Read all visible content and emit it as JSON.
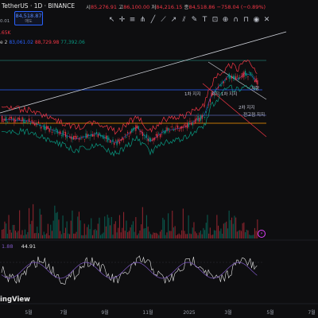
{
  "header": {
    "symbol": "TetherUS · 1D · BINANCE",
    "ohlc": [
      {
        "k": "시",
        "v": "85,276.91"
      },
      {
        "k": "고",
        "v": "86,100.00"
      },
      {
        "k": "저",
        "v": "84,216.15"
      },
      {
        "k": "종",
        "v": "84,518.86"
      },
      {
        "k": "",
        "v": "−758.04 (−0.89%)"
      }
    ],
    "price_box": {
      "price": "84,518.87",
      "sub": "매도"
    },
    "volume_label": ".65K",
    "bb_line": {
      "prefix": "e 2",
      "v1": "83,061.02",
      "v2": "88,729.98",
      "v3": "77,392.06"
    },
    "left_tick": "0.01"
  },
  "annotations": {
    "a1": "저항",
    "a2": "1차 지지",
    "a3": "지지 1차 지지",
    "a4": "2차 지지",
    "a5": "전고점 지지"
  },
  "rsi": {
    "v1": "1.88",
    "v2": "44.91"
  },
  "logo": "ingView",
  "x_axis": [
    {
      "label": "5월",
      "x": 0.2
    },
    {
      "label": "7월",
      "x": 0.1
    },
    {
      "label": "9월",
      "x": 0.3
    },
    {
      "label": "11월",
      "x": 0.5
    },
    {
      "label": "2025",
      "x": 0.6
    },
    {
      "label": "3월",
      "x": 0.7
    },
    {
      "label": "5월",
      "x": 0.85
    },
    {
      "label": "7월",
      "x": 0.95
    }
  ],
  "colors": {
    "background": "#0e0e10",
    "up": "#089981",
    "down": "#f23645",
    "bb_upper": "#f23645",
    "bb_lower": "#089981",
    "level_blue": "#2962ff",
    "level_orange": "#ff9800",
    "level_teal": "#26a69a",
    "rsi": "#7e57c2"
  },
  "toolbar_icons": [
    "cursor-icon",
    "crosshair-icon",
    "fib-icon",
    "pitchfork-icon",
    "line-icon",
    "ray-icon",
    "trend-icon",
    "channel-icon",
    "brush-icon",
    "text-icon",
    "measure-icon",
    "zoom-icon",
    "magnet-icon",
    "lock-icon",
    "eye-icon",
    "trash-icon"
  ]
}
